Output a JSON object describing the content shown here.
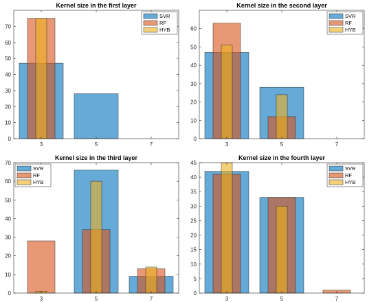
{
  "chart_data": [
    {
      "type": "bar",
      "title": "Kernel size in the first layer",
      "categories": [
        "3",
        "5",
        "7"
      ],
      "ylim": [
        0,
        80
      ],
      "yticks": [
        0,
        10,
        20,
        30,
        40,
        50,
        60,
        70
      ],
      "legend_placement": "top-right",
      "grid": false,
      "series": [
        {
          "name": "SVR",
          "color": "#0072BD",
          "values": [
            47,
            28,
            0
          ]
        },
        {
          "name": "RF",
          "color": "#D95319",
          "values": [
            75,
            0,
            0
          ]
        },
        {
          "name": "HYB",
          "color": "#EDB120",
          "values": [
            75,
            0,
            0
          ]
        }
      ]
    },
    {
      "type": "bar",
      "title": "Kernel size in the second layer",
      "categories": [
        "3",
        "5",
        "7"
      ],
      "ylim": [
        0,
        70
      ],
      "yticks": [
        0,
        10,
        20,
        30,
        40,
        50,
        60
      ],
      "legend_placement": "top-right",
      "grid": false,
      "series": [
        {
          "name": "SVR",
          "color": "#0072BD",
          "values": [
            47,
            28,
            0
          ]
        },
        {
          "name": "RF",
          "color": "#D95319",
          "values": [
            63,
            12,
            0
          ]
        },
        {
          "name": "HYB",
          "color": "#EDB120",
          "values": [
            51,
            24,
            0
          ]
        }
      ]
    },
    {
      "type": "bar",
      "title": "Kernel size in the third layer",
      "categories": [
        "3",
        "5",
        "7"
      ],
      "ylim": [
        0,
        70
      ],
      "yticks": [
        0,
        10,
        20,
        30,
        40,
        50,
        60,
        70
      ],
      "legend_placement": "top-left",
      "grid": false,
      "series": [
        {
          "name": "SVR",
          "color": "#0072BD",
          "values": [
            0,
            66,
            9
          ]
        },
        {
          "name": "RF",
          "color": "#D95319",
          "values": [
            28,
            34,
            13
          ]
        },
        {
          "name": "HYB",
          "color": "#EDB120",
          "values": [
            1,
            60,
            14
          ]
        }
      ]
    },
    {
      "type": "bar",
      "title": "Kernel size in the fourth layer",
      "categories": [
        "3",
        "5",
        "7"
      ],
      "ylim": [
        0,
        45
      ],
      "yticks": [
        0,
        5,
        10,
        15,
        20,
        25,
        30,
        35,
        40,
        45
      ],
      "legend_placement": "top-right",
      "grid": false,
      "series": [
        {
          "name": "SVR",
          "color": "#0072BD",
          "values": [
            42,
            33,
            0
          ]
        },
        {
          "name": "RF",
          "color": "#D95319",
          "values": [
            41,
            33,
            1
          ]
        },
        {
          "name": "HYB",
          "color": "#EDB120",
          "values": [
            45,
            30,
            0
          ]
        }
      ]
    }
  ]
}
